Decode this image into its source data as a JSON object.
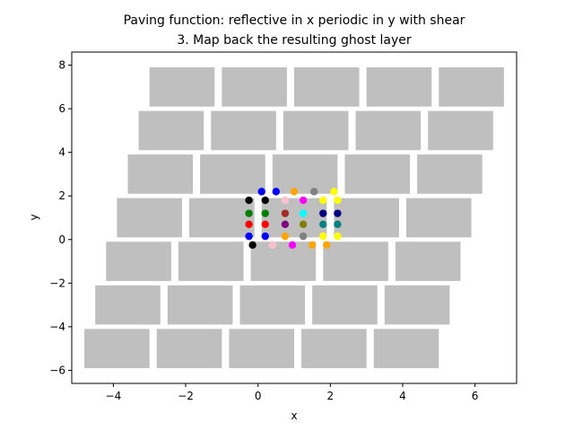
{
  "chart_data": {
    "type": "scatter",
    "title": "Paving function: reflective in x periodic in y with shear",
    "subtitle": "3. Map back the resulting ghost layer",
    "xlabel": "x",
    "ylabel": "y",
    "xlim": [
      -5.15,
      7.15
    ],
    "ylim": [
      -6.6,
      8.6
    ],
    "xticks": [
      -4,
      -2,
      0,
      2,
      4,
      6
    ],
    "yticks": [
      -6,
      -4,
      -2,
      0,
      2,
      4,
      6,
      8
    ],
    "tick_labels_x": [
      "−4",
      "−2",
      "0",
      "2",
      "4",
      "6"
    ],
    "tick_labels_y": [
      "−6",
      "−4",
      "−2",
      "0",
      "2",
      "4",
      "6",
      "8"
    ],
    "grid": false,
    "tile_color": "#bfbfbf",
    "tiles": [
      {
        "x0": -3.0,
        "x1": -1.2,
        "y0": 6.1,
        "y1": 7.9
      },
      {
        "x0": -1.0,
        "x1": 0.8,
        "y0": 6.1,
        "y1": 7.9
      },
      {
        "x0": 1.0,
        "x1": 2.8,
        "y0": 6.1,
        "y1": 7.9
      },
      {
        "x0": 3.0,
        "x1": 4.8,
        "y0": 6.1,
        "y1": 7.9
      },
      {
        "x0": 5.0,
        "x1": 6.8,
        "y0": 6.1,
        "y1": 7.9
      },
      {
        "x0": -3.3,
        "x1": -1.5,
        "y0": 4.1,
        "y1": 5.9
      },
      {
        "x0": -1.3,
        "x1": 0.5,
        "y0": 4.1,
        "y1": 5.9
      },
      {
        "x0": 0.7,
        "x1": 2.5,
        "y0": 4.1,
        "y1": 5.9
      },
      {
        "x0": 2.7,
        "x1": 4.5,
        "y0": 4.1,
        "y1": 5.9
      },
      {
        "x0": 4.7,
        "x1": 6.5,
        "y0": 4.1,
        "y1": 5.9
      },
      {
        "x0": -3.6,
        "x1": -1.8,
        "y0": 2.1,
        "y1": 3.9
      },
      {
        "x0": -1.6,
        "x1": 0.2,
        "y0": 2.1,
        "y1": 3.9
      },
      {
        "x0": 0.4,
        "x1": 2.2,
        "y0": 2.1,
        "y1": 3.9
      },
      {
        "x0": 2.4,
        "x1": 4.2,
        "y0": 2.1,
        "y1": 3.9
      },
      {
        "x0": 4.4,
        "x1": 6.2,
        "y0": 2.1,
        "y1": 3.9
      },
      {
        "x0": -3.9,
        "x1": -2.1,
        "y0": 0.1,
        "y1": 1.9
      },
      {
        "x0": -1.9,
        "x1": -0.1,
        "y0": 0.1,
        "y1": 1.9
      },
      {
        "x0": 0.1,
        "x1": 1.9,
        "y0": 0.1,
        "y1": 1.9
      },
      {
        "x0": 2.1,
        "x1": 3.9,
        "y0": 0.1,
        "y1": 1.9
      },
      {
        "x0": 4.1,
        "x1": 5.9,
        "y0": 0.1,
        "y1": 1.9
      },
      {
        "x0": -4.2,
        "x1": -2.4,
        "y0": -1.9,
        "y1": -0.1
      },
      {
        "x0": -2.2,
        "x1": -0.4,
        "y0": -1.9,
        "y1": -0.1
      },
      {
        "x0": -0.2,
        "x1": 1.6,
        "y0": -1.9,
        "y1": -0.1
      },
      {
        "x0": 1.8,
        "x1": 3.6,
        "y0": -1.9,
        "y1": -0.1
      },
      {
        "x0": 3.8,
        "x1": 5.6,
        "y0": -1.9,
        "y1": -0.1
      },
      {
        "x0": -4.5,
        "x1": -2.7,
        "y0": -3.9,
        "y1": -2.1
      },
      {
        "x0": -2.5,
        "x1": -0.7,
        "y0": -3.9,
        "y1": -2.1
      },
      {
        "x0": -0.5,
        "x1": 1.3,
        "y0": -3.9,
        "y1": -2.1
      },
      {
        "x0": 1.5,
        "x1": 3.3,
        "y0": -3.9,
        "y1": -2.1
      },
      {
        "x0": 3.5,
        "x1": 5.3,
        "y0": -3.9,
        "y1": -2.1
      },
      {
        "x0": -4.8,
        "x1": -3.0,
        "y0": -5.9,
        "y1": -4.1
      },
      {
        "x0": -2.8,
        "x1": -1.0,
        "y0": -5.9,
        "y1": -4.1
      },
      {
        "x0": -0.8,
        "x1": 1.0,
        "y0": -5.9,
        "y1": -4.1
      },
      {
        "x0": 1.2,
        "x1": 3.0,
        "y0": -5.9,
        "y1": -4.1
      },
      {
        "x0": 3.2,
        "x1": 5.0,
        "y0": -5.9,
        "y1": -4.1
      }
    ],
    "points": [
      {
        "x": 0.1,
        "y": 2.2,
        "color": "#0000ff"
      },
      {
        "x": 0.5,
        "y": 2.2,
        "color": "#0000ff"
      },
      {
        "x": 1.0,
        "y": 2.2,
        "color": "#ffa500"
      },
      {
        "x": 1.55,
        "y": 2.2,
        "color": "#808080"
      },
      {
        "x": 2.1,
        "y": 2.2,
        "color": "#ffff00"
      },
      {
        "x": -0.25,
        "y": 1.8,
        "color": "#000000"
      },
      {
        "x": 0.2,
        "y": 1.8,
        "color": "#000000"
      },
      {
        "x": 0.75,
        "y": 1.8,
        "color": "#ffc0cb"
      },
      {
        "x": 1.25,
        "y": 1.8,
        "color": "#ff00ff"
      },
      {
        "x": 1.8,
        "y": 1.8,
        "color": "#ffff00"
      },
      {
        "x": 2.2,
        "y": 1.8,
        "color": "#ffff00"
      },
      {
        "x": -0.25,
        "y": 1.2,
        "color": "#008000"
      },
      {
        "x": 0.2,
        "y": 1.2,
        "color": "#008000"
      },
      {
        "x": 0.75,
        "y": 1.2,
        "color": "#a52a2a"
      },
      {
        "x": 1.25,
        "y": 1.2,
        "color": "#00ffff"
      },
      {
        "x": 1.8,
        "y": 1.2,
        "color": "#000080"
      },
      {
        "x": 2.2,
        "y": 1.2,
        "color": "#000080"
      },
      {
        "x": -0.25,
        "y": 0.7,
        "color": "#ff0000"
      },
      {
        "x": 0.2,
        "y": 0.7,
        "color": "#ff0000"
      },
      {
        "x": 0.75,
        "y": 0.7,
        "color": "#800080"
      },
      {
        "x": 1.25,
        "y": 0.7,
        "color": "#808000"
      },
      {
        "x": 1.8,
        "y": 0.7,
        "color": "#008080"
      },
      {
        "x": 2.2,
        "y": 0.7,
        "color": "#008080"
      },
      {
        "x": -0.25,
        "y": 0.15,
        "color": "#0000ff"
      },
      {
        "x": 0.2,
        "y": 0.15,
        "color": "#0000ff"
      },
      {
        "x": 0.75,
        "y": 0.15,
        "color": "#ffa500"
      },
      {
        "x": 1.25,
        "y": 0.15,
        "color": "#808080"
      },
      {
        "x": 1.8,
        "y": 0.15,
        "color": "#ffff00"
      },
      {
        "x": 2.2,
        "y": 0.15,
        "color": "#ffff00"
      },
      {
        "x": -0.15,
        "y": -0.25,
        "color": "#000000"
      },
      {
        "x": 0.4,
        "y": -0.25,
        "color": "#ffc0cb"
      },
      {
        "x": 0.95,
        "y": -0.25,
        "color": "#ff00ff"
      },
      {
        "x": 1.5,
        "y": -0.25,
        "color": "#ffa500"
      },
      {
        "x": 1.9,
        "y": -0.25,
        "color": "#ffa500"
      }
    ]
  }
}
